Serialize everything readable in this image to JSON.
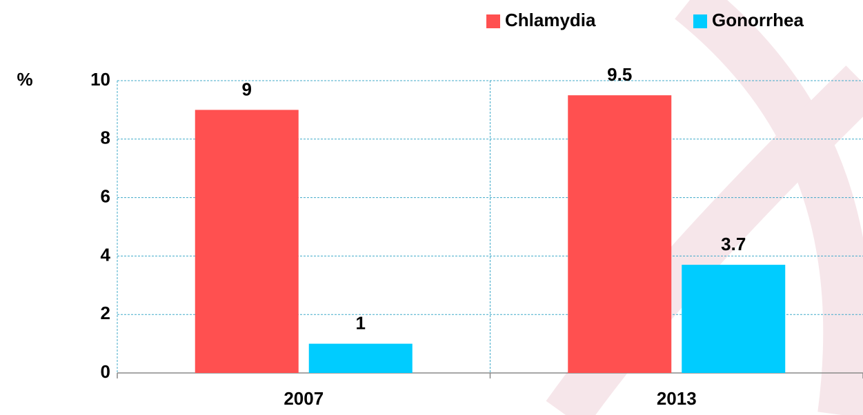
{
  "chart_data": {
    "type": "bar",
    "y_label": "%",
    "categories": [
      "2007",
      "2013"
    ],
    "series": [
      {
        "name": "Chlamydia",
        "color": "#ff5050",
        "values": [
          9,
          9.5
        ]
      },
      {
        "name": "Gonorrhea",
        "color": "#00ccff",
        "values": [
          1,
          3.7
        ]
      }
    ],
    "ylim": [
      0,
      10
    ],
    "yticks": [
      0,
      2,
      4,
      6,
      8,
      10
    ],
    "grid": true,
    "legend": "top-right"
  }
}
